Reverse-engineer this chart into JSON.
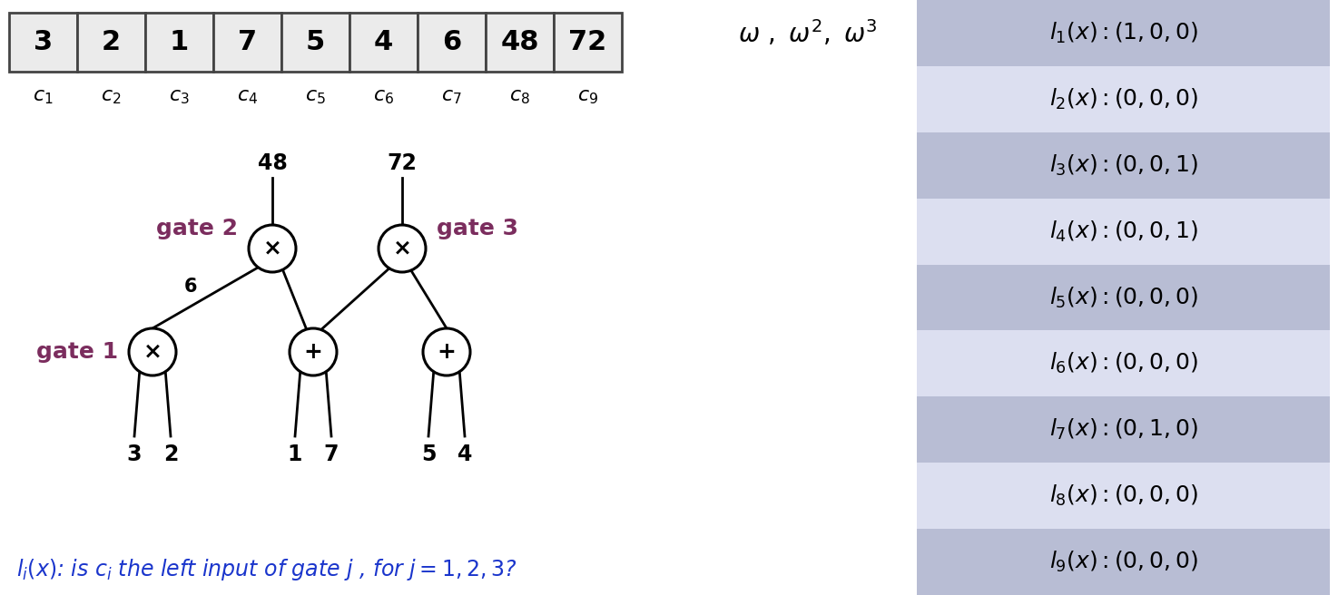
{
  "background_color": "#ffffff",
  "array_values": [
    "3",
    "2",
    "1",
    "7",
    "5",
    "4",
    "6",
    "48",
    "72"
  ],
  "array_bg": "#ebebeb",
  "array_border": "#444444",
  "gate_color": "#7b2d5e",
  "blue_color": "#1a35cc",
  "table_bg_dark": "#b8bdd4",
  "table_bg_light": "#dcdff0",
  "table_values": [
    "(1,0,0)",
    "(0,0,0)",
    "(0,0,1)",
    "(0,0,1)",
    "(0,0,0)",
    "(0,0,0)",
    "(0,1,0)",
    "(0,0,0)",
    "(0,0,0)"
  ],
  "table_alternating": [
    1,
    0,
    1,
    0,
    1,
    0,
    1,
    0,
    1
  ]
}
